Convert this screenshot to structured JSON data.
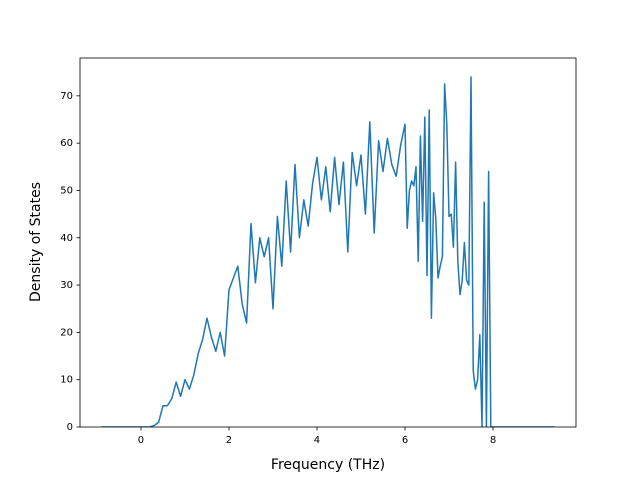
{
  "chart_data": {
    "type": "line",
    "xlabel": "Frequency (THz)",
    "ylabel": "Density of States",
    "x": [
      -0.9,
      -0.8,
      -0.7,
      -0.6,
      -0.5,
      -0.4,
      -0.3,
      -0.2,
      -0.1,
      0,
      0.1,
      0.2,
      0.3,
      0.4,
      0.5,
      0.6,
      0.7,
      0.8,
      0.9,
      1.0,
      1.1,
      1.2,
      1.3,
      1.4,
      1.5,
      1.6,
      1.7,
      1.8,
      1.9,
      2.0,
      2.1,
      2.2,
      2.3,
      2.4,
      2.5,
      2.6,
      2.7,
      2.8,
      2.9,
      3.0,
      3.1,
      3.2,
      3.3,
      3.4,
      3.5,
      3.6,
      3.7,
      3.8,
      3.9,
      4.0,
      4.1,
      4.2,
      4.3,
      4.4,
      4.5,
      4.6,
      4.7,
      4.8,
      4.9,
      5.0,
      5.1,
      5.2,
      5.3,
      5.4,
      5.5,
      5.6,
      5.7,
      5.8,
      5.9,
      6.0,
      6.05,
      6.1,
      6.15,
      6.2,
      6.25,
      6.3,
      6.35,
      6.4,
      6.45,
      6.5,
      6.55,
      6.6,
      6.65,
      6.7,
      6.75,
      6.8,
      6.85,
      6.9,
      6.95,
      7.0,
      7.05,
      7.1,
      7.15,
      7.2,
      7.25,
      7.3,
      7.35,
      7.4,
      7.45,
      7.5,
      7.55,
      7.6,
      7.65,
      7.7,
      7.75,
      7.8,
      7.85,
      7.9,
      7.95,
      8.0,
      9.4
    ],
    "values": [
      0,
      0,
      0,
      0,
      0,
      0,
      0,
      0,
      0,
      0,
      0,
      0,
      0.3,
      1,
      4.5,
      4.5,
      6,
      9.5,
      6.5,
      10,
      8,
      11,
      15.5,
      18.5,
      23,
      19,
      16,
      20,
      15,
      29,
      31.5,
      34,
      26,
      22,
      43,
      30.5,
      40,
      36,
      40,
      25,
      44.5,
      34,
      52,
      37,
      55.5,
      40,
      48,
      42.5,
      51.5,
      57,
      48,
      55,
      45.5,
      57,
      47,
      56,
      37,
      58,
      51,
      57.5,
      45,
      64.5,
      41,
      60.5,
      54,
      61,
      55.5,
      53,
      59.5,
      64,
      42,
      50,
      52,
      51,
      55,
      35,
      61.5,
      43.5,
      65.5,
      32,
      67,
      23,
      49.5,
      44,
      31.5,
      34,
      36,
      72.5,
      64,
      44.5,
      45,
      38,
      56,
      35,
      28,
      31,
      39,
      31,
      30,
      74,
      12,
      8,
      10,
      19.5,
      0,
      47.5,
      0,
      54,
      0,
      0,
      0
    ],
    "color": "#1f77b4",
    "xlim": [
      -1.386,
      9.886
    ],
    "xticks": [
      0,
      2,
      4,
      6,
      8
    ],
    "ylim": [
      0,
      78
    ],
    "yticks": [
      0,
      10,
      20,
      30,
      40,
      50,
      60,
      70
    ]
  }
}
